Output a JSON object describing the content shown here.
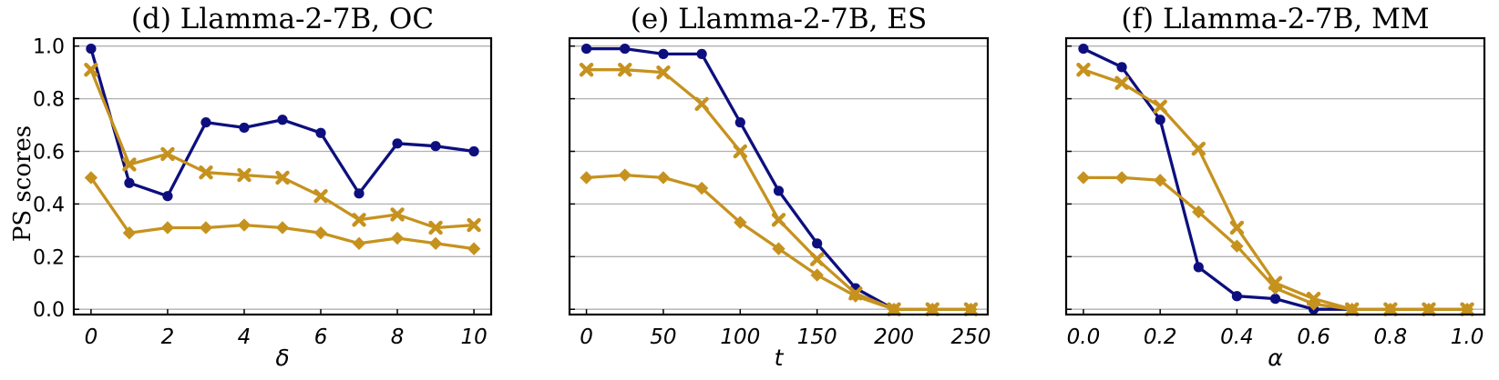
{
  "chart_data": [
    {
      "type": "line",
      "title": "(d) Llamma-2-7B, OC",
      "xlabel": "δ",
      "ylabel": "PS scores",
      "x": [
        0,
        1,
        2,
        3,
        4,
        5,
        6,
        7,
        8,
        9,
        10
      ],
      "xticks": [
        "0",
        "2",
        "4",
        "6",
        "8",
        "10"
      ],
      "xlim": [
        -0.45,
        10.45
      ],
      "ylim": [
        -0.02,
        1.03
      ],
      "yticks": [
        "0.0",
        "0.2",
        "0.4",
        "0.6",
        "0.8",
        "1.0"
      ],
      "grid": "horizontal",
      "series": [
        {
          "color": "#0d0f7e",
          "marker": "circle",
          "values": [
            0.99,
            0.48,
            0.43,
            0.71,
            0.69,
            0.72,
            0.67,
            0.44,
            0.63,
            0.62,
            0.6
          ]
        },
        {
          "color": "#c6921e",
          "marker": "x",
          "values": [
            0.91,
            0.55,
            0.59,
            0.52,
            0.51,
            0.5,
            0.43,
            0.34,
            0.36,
            0.31,
            0.32
          ]
        },
        {
          "color": "#c6921e",
          "marker": "diamond",
          "values": [
            0.5,
            0.29,
            0.31,
            0.31,
            0.32,
            0.31,
            0.29,
            0.25,
            0.27,
            0.25,
            0.23
          ]
        }
      ]
    },
    {
      "type": "line",
      "title": "(e) Llamma-2-7B, ES",
      "xlabel": "t",
      "ylabel": "",
      "x": [
        0,
        25,
        50,
        75,
        100,
        125,
        150,
        175,
        200,
        225,
        250
      ],
      "xticks": [
        "0",
        "50",
        "100",
        "150",
        "200",
        "250"
      ],
      "xlim": [
        -11,
        261
      ],
      "ylim": [
        -0.02,
        1.03
      ],
      "yticks": [],
      "grid": "horizontal",
      "series": [
        {
          "color": "#0d0f7e",
          "marker": "circle",
          "values": [
            0.99,
            0.99,
            0.97,
            0.97,
            0.71,
            0.45,
            0.25,
            0.08,
            0.0,
            0.0,
            0.0
          ]
        },
        {
          "color": "#c6921e",
          "marker": "x",
          "values": [
            0.91,
            0.91,
            0.9,
            0.78,
            0.6,
            0.34,
            0.19,
            0.06,
            0.0,
            0.0,
            0.0
          ]
        },
        {
          "color": "#c6921e",
          "marker": "diamond",
          "values": [
            0.5,
            0.51,
            0.5,
            0.46,
            0.33,
            0.23,
            0.13,
            0.05,
            0.0,
            0.0,
            0.0
          ]
        }
      ]
    },
    {
      "type": "line",
      "title": "(f) Llamma-2-7B, MM",
      "xlabel": "α",
      "ylabel": "",
      "x": [
        0.0,
        0.1,
        0.2,
        0.3,
        0.4,
        0.5,
        0.6,
        0.7,
        0.8,
        0.9,
        1.0
      ],
      "xticks": [
        "0.0",
        "0.2",
        "0.4",
        "0.6",
        "0.8",
        "1.0"
      ],
      "xlim": [
        -0.045,
        1.045
      ],
      "ylim": [
        -0.02,
        1.03
      ],
      "yticks": [],
      "grid": "horizontal",
      "series": [
        {
          "color": "#0d0f7e",
          "marker": "circle",
          "values": [
            0.99,
            0.92,
            0.72,
            0.16,
            0.05,
            0.04,
            0.0,
            0.0,
            0.0,
            0.0,
            0.0
          ]
        },
        {
          "color": "#c6921e",
          "marker": "x",
          "values": [
            0.91,
            0.86,
            0.77,
            0.61,
            0.31,
            0.1,
            0.04,
            0.0,
            0.0,
            0.0,
            0.0
          ]
        },
        {
          "color": "#c6921e",
          "marker": "diamond",
          "values": [
            0.5,
            0.5,
            0.49,
            0.37,
            0.24,
            0.08,
            0.02,
            0.0,
            0.0,
            0.0,
            0.0
          ]
        }
      ]
    }
  ]
}
